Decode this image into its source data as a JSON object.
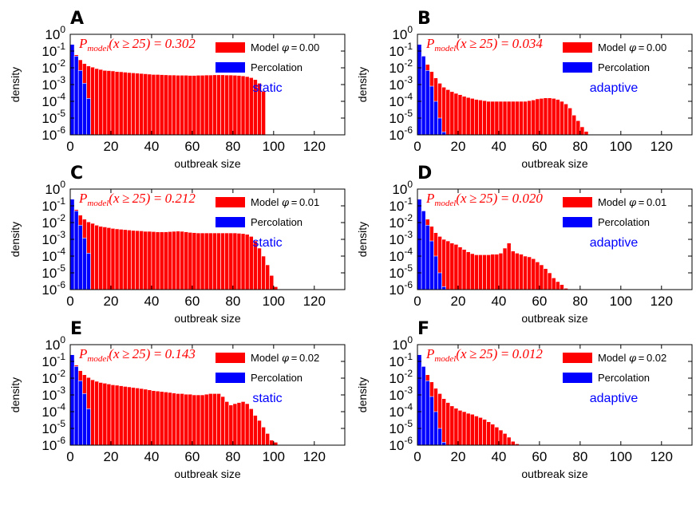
{
  "colors": {
    "model": "#ff0000",
    "percolation": "#0000ff",
    "annotation": "#ff0000",
    "mode_text": "#0000ff"
  },
  "legend": {
    "model_prefix": "Model ",
    "percolation": "Percolation"
  },
  "chart_data": [
    {
      "panel": "A",
      "type": "bar",
      "xlabel": "outbreak size",
      "ylabel": "density",
      "yscale": "log",
      "ylim": [
        1e-06,
        1
      ],
      "xlim": [
        0,
        135
      ],
      "xticks": [
        0,
        20,
        40,
        60,
        80,
        100,
        120
      ],
      "phi": "0.00",
      "mode": "static",
      "p_model": "0.302",
      "model": [
        0.13,
        0.06,
        0.03,
        0.018,
        0.013,
        0.011,
        0.009,
        0.008,
        0.007,
        0.0068,
        0.0065,
        0.006,
        0.0058,
        0.0055,
        0.0052,
        0.005,
        0.0048,
        0.0046,
        0.0044,
        0.0042,
        0.004,
        0.004,
        0.0039,
        0.0038,
        0.0037,
        0.0037,
        0.0036,
        0.0036,
        0.0036,
        0.0035,
        0.0035,
        0.0036,
        0.0036,
        0.0037,
        0.0037,
        0.0038,
        0.0038,
        0.0038,
        0.0037,
        0.0037,
        0.0036,
        0.0035,
        0.0033,
        0.003,
        0.0026,
        0.002,
        0.0012,
        0.0004
      ],
      "percolation": [
        0.25,
        0.05,
        0.007,
        0.0012,
        0.00015
      ]
    },
    {
      "panel": "B",
      "type": "bar",
      "xlabel": "outbreak size",
      "ylabel": "density",
      "yscale": "log",
      "ylim": [
        1e-06,
        1
      ],
      "xlim": [
        0,
        135
      ],
      "xticks": [
        0,
        20,
        40,
        60,
        80,
        100,
        120
      ],
      "phi": "0.00",
      "mode": "adaptive",
      "p_model": "0.034",
      "model": [
        0.15,
        0.05,
        0.016,
        0.006,
        0.0025,
        0.0012,
        0.0007,
        0.0005,
        0.00038,
        0.0003,
        0.00025,
        0.0002,
        0.00017,
        0.00015,
        0.00013,
        0.00012,
        0.00011,
        0.0001,
        0.0001,
        0.0001,
        0.0001,
        0.0001,
        0.0001,
        0.0001,
        0.0001,
        0.0001,
        0.0001,
        0.00011,
        0.00012,
        0.00014,
        0.00015,
        0.00016,
        0.00016,
        0.00015,
        0.00013,
        0.0001,
        7e-05,
        4e-05,
        1.5e-05,
        7e-06,
        3e-06,
        1.6e-06
      ],
      "percolation": [
        0.25,
        0.05,
        0.007,
        0.0008,
        0.0001,
        1e-05,
        1.5e-06
      ]
    },
    {
      "panel": "C",
      "type": "bar",
      "xlabel": "outbreak size",
      "ylabel": "density",
      "yscale": "log",
      "ylim": [
        1e-06,
        1
      ],
      "xlim": [
        0,
        135
      ],
      "xticks": [
        0,
        20,
        40,
        60,
        80,
        100,
        120
      ],
      "phi": "0.01",
      "mode": "static",
      "p_model": "0.212",
      "model": [
        0.14,
        0.06,
        0.028,
        0.016,
        0.011,
        0.009,
        0.007,
        0.006,
        0.0055,
        0.005,
        0.0045,
        0.0042,
        0.004,
        0.0038,
        0.0036,
        0.0034,
        0.0033,
        0.0032,
        0.003,
        0.003,
        0.0029,
        0.0028,
        0.0028,
        0.0028,
        0.0029,
        0.003,
        0.0031,
        0.003,
        0.0028,
        0.0026,
        0.0025,
        0.0024,
        0.0024,
        0.0024,
        0.0024,
        0.0024,
        0.0024,
        0.0024,
        0.0024,
        0.0024,
        0.0024,
        0.0023,
        0.0022,
        0.002,
        0.0015,
        0.0008,
        0.0003,
        0.0001,
        3e-05,
        7e-06,
        1.5e-06
      ],
      "percolation": [
        0.25,
        0.05,
        0.007,
        0.0012,
        0.00015
      ]
    },
    {
      "panel": "D",
      "type": "bar",
      "xlabel": "outbreak size",
      "ylabel": "density",
      "yscale": "log",
      "ylim": [
        1e-06,
        1
      ],
      "xlim": [
        0,
        135
      ],
      "xticks": [
        0,
        20,
        40,
        60,
        80,
        100,
        120
      ],
      "phi": "0.01",
      "mode": "adaptive",
      "p_model": "0.020",
      "model": [
        0.15,
        0.05,
        0.016,
        0.006,
        0.0025,
        0.0015,
        0.001,
        0.0008,
        0.0006,
        0.0005,
        0.00035,
        0.00025,
        0.00018,
        0.00014,
        0.00012,
        0.00012,
        0.00012,
        0.00012,
        0.00013,
        0.00013,
        0.00015,
        0.0003,
        0.0006,
        0.0002,
        0.00015,
        0.00013,
        0.0001,
        9e-05,
        7e-05,
        4.5e-05,
        3e-05,
        1.8e-05,
        1e-05,
        5e-06,
        3e-06,
        2e-06,
        1.2e-06,
        1e-06
      ],
      "percolation": [
        0.25,
        0.05,
        0.007,
        0.0008,
        0.0001,
        1e-05,
        1.5e-06
      ]
    },
    {
      "panel": "E",
      "type": "bar",
      "xlabel": "outbreak size",
      "ylabel": "density",
      "yscale": "log",
      "ylim": [
        1e-06,
        1
      ],
      "xlim": [
        0,
        135
      ],
      "xticks": [
        0,
        20,
        40,
        60,
        80,
        100,
        120
      ],
      "phi": "0.02",
      "mode": "static",
      "p_model": "0.143",
      "model": [
        0.14,
        0.06,
        0.028,
        0.016,
        0.011,
        0.008,
        0.0065,
        0.0055,
        0.005,
        0.0045,
        0.004,
        0.0038,
        0.0035,
        0.0032,
        0.003,
        0.0028,
        0.0026,
        0.0024,
        0.0022,
        0.002,
        0.0018,
        0.0017,
        0.0016,
        0.0015,
        0.0014,
        0.0013,
        0.0012,
        0.0012,
        0.0011,
        0.0011,
        0.001,
        0.001,
        0.001,
        0.0011,
        0.0012,
        0.0012,
        0.0012,
        0.0008,
        0.0004,
        0.00025,
        0.0003,
        0.00035,
        0.0004,
        0.0003,
        0.00015,
        6e-05,
        3e-05,
        1.2e-05,
        5e-06,
        2e-06,
        1.5e-06
      ],
      "percolation": [
        0.25,
        0.05,
        0.007,
        0.0012,
        0.00015
      ]
    },
    {
      "panel": "F",
      "type": "bar",
      "xlabel": "outbreak size",
      "ylabel": "density",
      "yscale": "log",
      "ylim": [
        1e-06,
        1
      ],
      "xlim": [
        0,
        135
      ],
      "xticks": [
        0,
        20,
        40,
        60,
        80,
        100,
        120
      ],
      "phi": "0.02",
      "mode": "adaptive",
      "p_model": "0.012",
      "model": [
        0.15,
        0.05,
        0.016,
        0.006,
        0.0025,
        0.0012,
        0.0006,
        0.00035,
        0.00022,
        0.00016,
        0.00012,
        0.0001,
        8e-05,
        7e-05,
        5.5e-05,
        4.5e-05,
        3.5e-05,
        2.5e-05,
        1.8e-05,
        1.2e-05,
        8e-06,
        5e-06,
        3e-06,
        1.7e-06,
        1.2e-06,
        1e-06
      ],
      "percolation": [
        0.25,
        0.05,
        0.007,
        0.0008,
        0.0001,
        1e-05,
        1.5e-06
      ]
    }
  ]
}
